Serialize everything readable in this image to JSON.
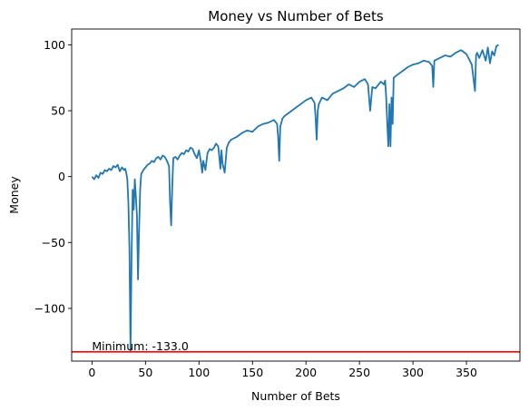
{
  "chart_data": {
    "type": "line",
    "title": "Money vs Number of Bets",
    "xlabel": "Number of Bets",
    "ylabel": "Money",
    "xlim": [
      -19,
      400
    ],
    "ylim": [
      -140,
      112
    ],
    "xticks": [
      0,
      50,
      100,
      150,
      200,
      250,
      300,
      350
    ],
    "yticks": [
      -100,
      -50,
      0,
      50,
      100
    ],
    "ytick_labels": [
      "−100",
      "−50",
      "0",
      "50",
      "100"
    ],
    "grid": false,
    "series": [
      {
        "color": "#1f77b4",
        "x": [
          0,
          2,
          4,
          6,
          8,
          10,
          12,
          14,
          16,
          18,
          20,
          22,
          24,
          26,
          28,
          30,
          31,
          32,
          33,
          34,
          35,
          36,
          37,
          38,
          39,
          40,
          41,
          42,
          43,
          44,
          45,
          46,
          48,
          50,
          52,
          54,
          56,
          58,
          60,
          62,
          64,
          66,
          68,
          70,
          72,
          73,
          74,
          75,
          76,
          78,
          80,
          82,
          84,
          86,
          88,
          90,
          92,
          94,
          96,
          98,
          100,
          102,
          103,
          104,
          106,
          108,
          110,
          112,
          114,
          116,
          118,
          119,
          120,
          121,
          122,
          124,
          126,
          128,
          130,
          135,
          140,
          145,
          150,
          155,
          160,
          165,
          170,
          173,
          174,
          175,
          176,
          178,
          180,
          185,
          190,
          195,
          200,
          205,
          208,
          209,
          210,
          211,
          212,
          215,
          220,
          225,
          230,
          235,
          240,
          245,
          250,
          255,
          258,
          259,
          260,
          262,
          265,
          270,
          273,
          274,
          275,
          276,
          277,
          278,
          279,
          280,
          281,
          282,
          285,
          290,
          295,
          300,
          305,
          310,
          315,
          318,
          319,
          320,
          325,
          330,
          335,
          340,
          345,
          350,
          355,
          358,
          359,
          360,
          362,
          365,
          368,
          370,
          372,
          374,
          376,
          378,
          380
        ],
        "y": [
          0,
          -2,
          1,
          -1,
          3,
          2,
          5,
          4,
          6,
          5,
          8,
          7,
          9,
          4,
          7,
          5,
          6,
          3,
          -2,
          -20,
          -55,
          -133,
          -60,
          -10,
          -25,
          -2,
          -15,
          -30,
          -78,
          -40,
          -10,
          2,
          5,
          7,
          9,
          10,
          12,
          11,
          14,
          15,
          13,
          16,
          15,
          12,
          8,
          -20,
          -37,
          -8,
          14,
          15,
          13,
          16,
          18,
          17,
          20,
          19,
          22,
          21,
          17,
          14,
          20,
          10,
          3,
          12,
          5,
          18,
          21,
          20,
          22,
          25,
          23,
          15,
          6,
          20,
          10,
          3,
          22,
          26,
          28,
          30,
          33,
          35,
          34,
          38,
          40,
          41,
          43,
          40,
          30,
          12,
          38,
          44,
          46,
          49,
          52,
          55,
          58,
          60,
          56,
          45,
          28,
          50,
          55,
          60,
          58,
          63,
          65,
          67,
          70,
          68,
          72,
          74,
          70,
          60,
          50,
          68,
          67,
          72,
          70,
          73,
          60,
          40,
          23,
          55,
          23,
          60,
          40,
          75,
          77,
          80,
          83,
          85,
          86,
          88,
          87,
          84,
          68,
          88,
          90,
          92,
          91,
          94,
          96,
          93,
          85,
          65,
          92,
          94,
          90,
          96,
          88,
          98,
          86,
          95,
          92,
          99,
          100
        ]
      }
    ],
    "hline": {
      "y": -133,
      "color": "#ff0000"
    },
    "annotation": {
      "text": "Minimum: -133.0",
      "x": 0,
      "y": -133
    }
  }
}
